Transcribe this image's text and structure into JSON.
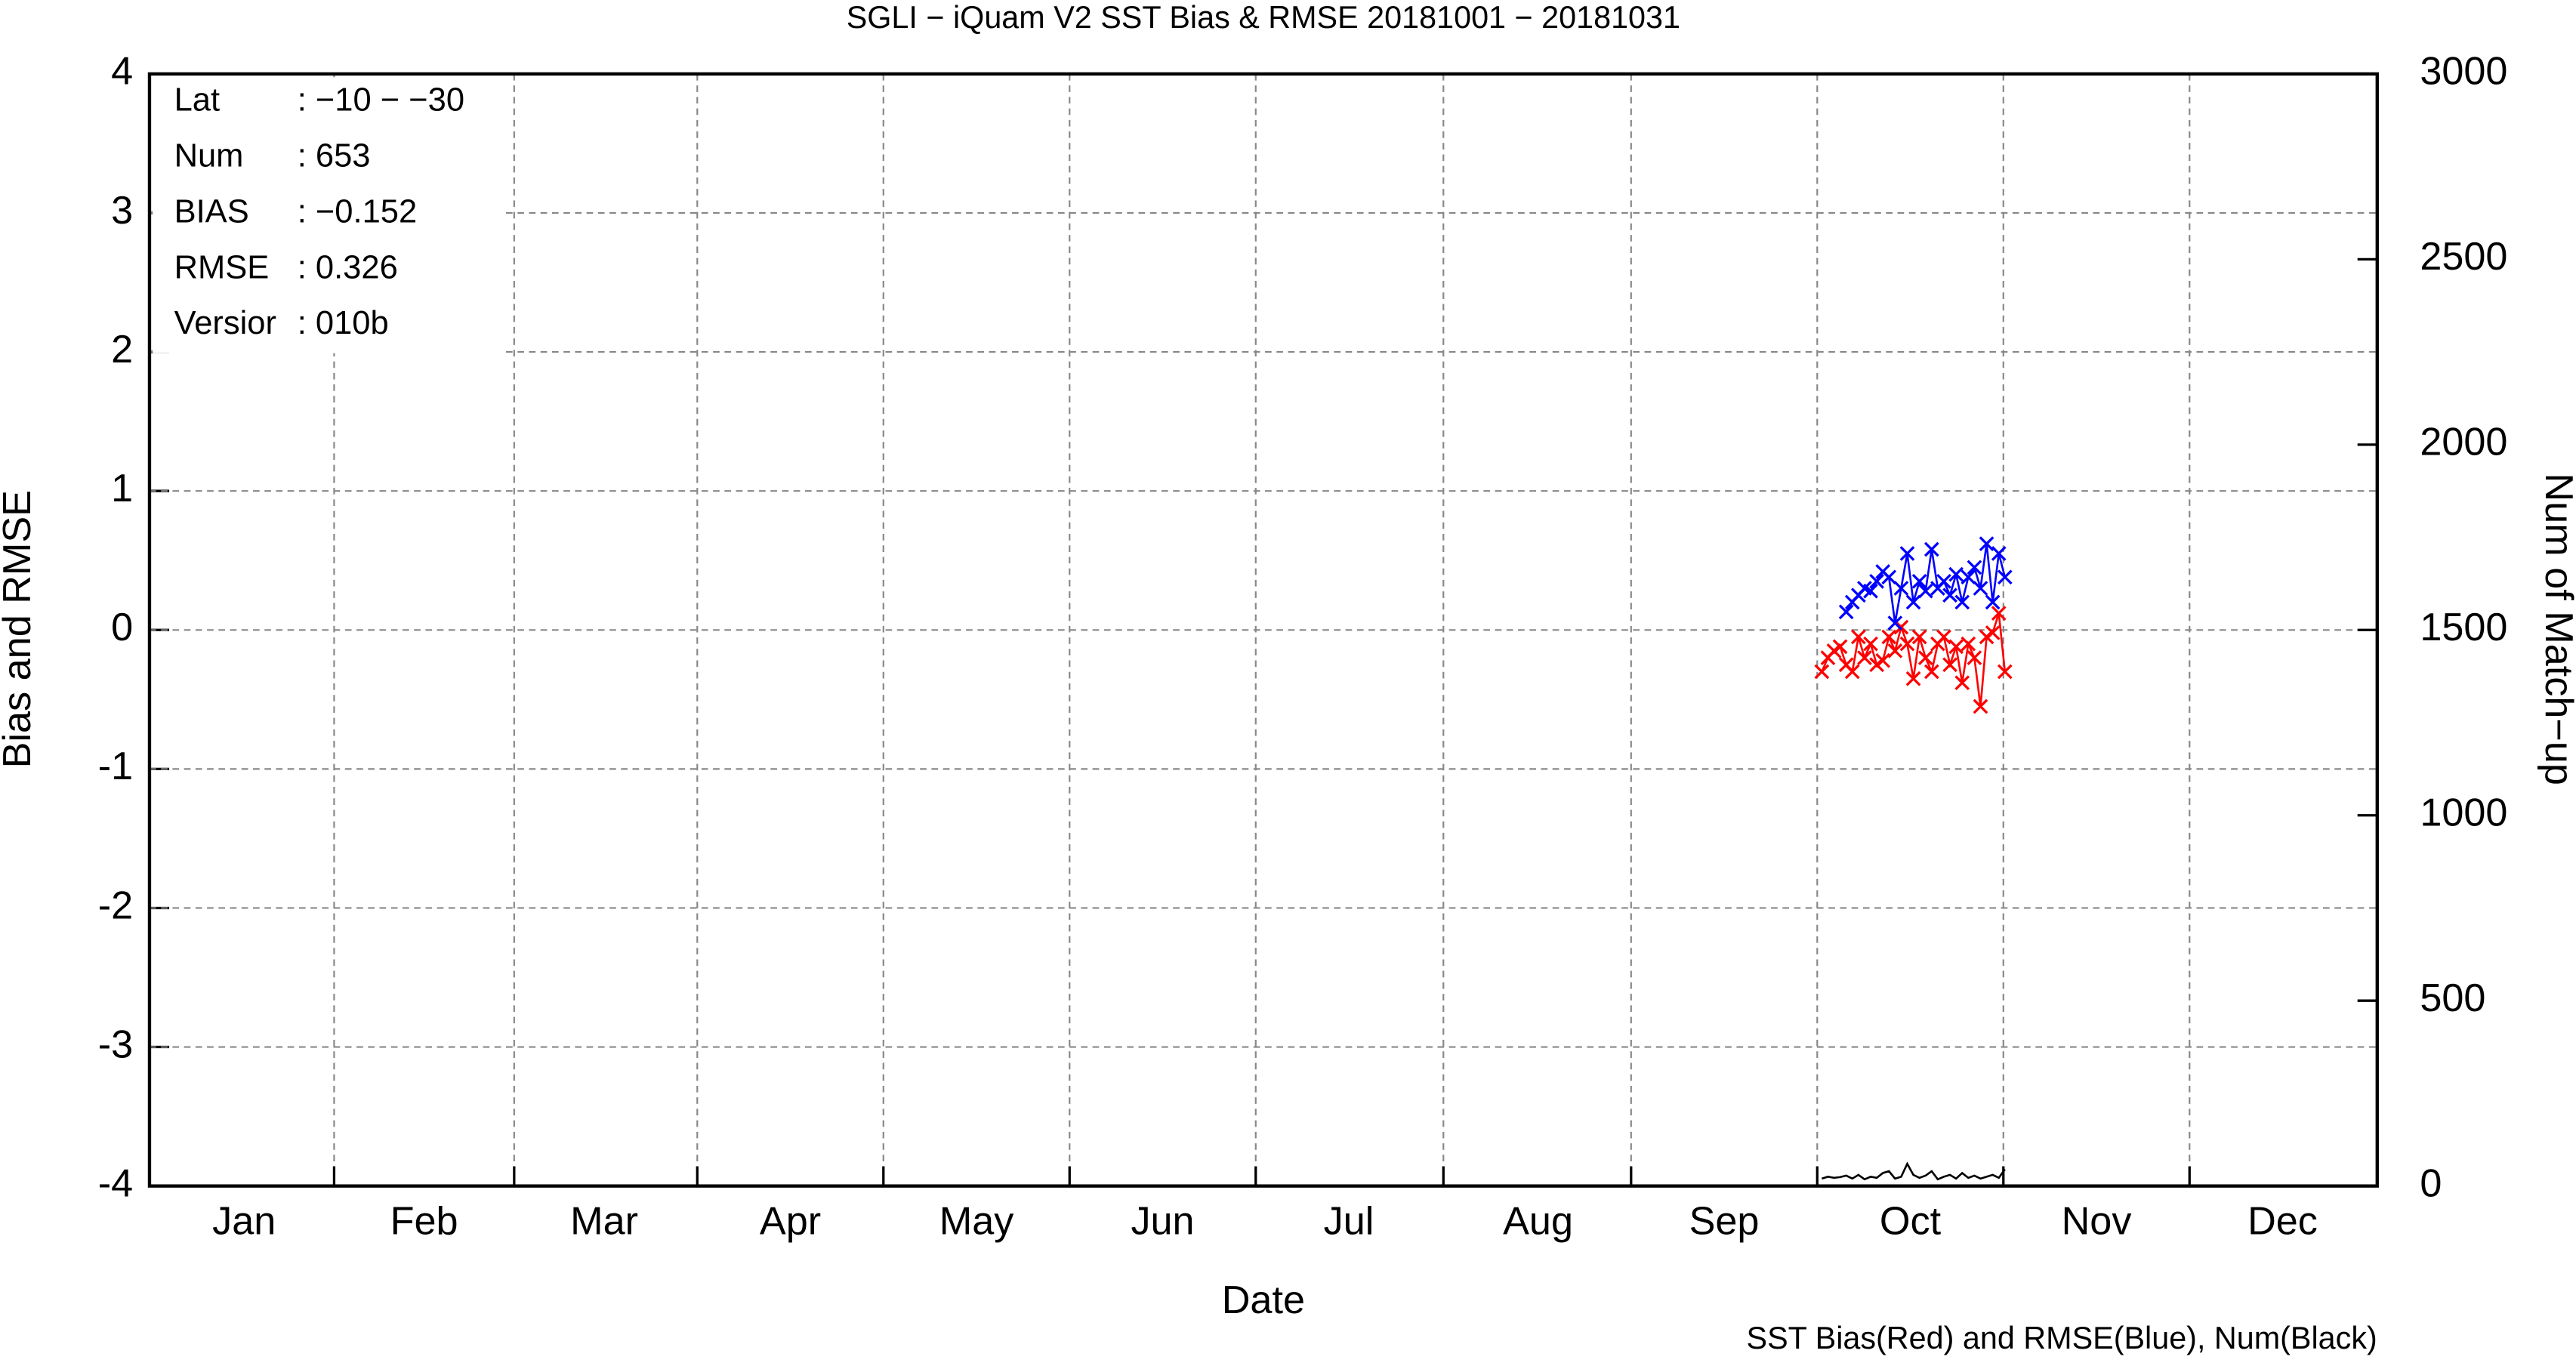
{
  "chart_data": {
    "type": "line",
    "title": "SGLI − iQuam V2 SST Bias & RMSE 20181001 − 20181031",
    "xlabel": "Date",
    "ylabel": "Bias and RMSE",
    "y2label": "Num of Match−up",
    "note": "SST Bias(Red) and RMSE(Blue), Num(Black)",
    "stats": [
      {
        "label": "Lat",
        "value": ": −10 − −30"
      },
      {
        "label": "Num",
        "value": ": 653"
      },
      {
        "label": "BIAS",
        "value": ": −0.152"
      },
      {
        "label": "RMSE",
        "value": ": 0.326"
      },
      {
        "label": "Versior",
        "value": ": 010b"
      }
    ],
    "x": [
      274,
      275,
      276,
      277,
      278,
      279,
      280,
      281,
      282,
      283,
      284,
      285,
      286,
      287,
      288,
      289,
      290,
      291,
      292,
      293,
      294,
      295,
      296,
      297,
      298,
      299,
      300,
      301,
      302,
      303,
      304
    ],
    "xlim": [
      0,
      365
    ],
    "xticks": [
      {
        "value": 15.5,
        "label": "Jan"
      },
      {
        "value": 45,
        "label": "Feb"
      },
      {
        "value": 74.5,
        "label": "Mar"
      },
      {
        "value": 105,
        "label": "Apr"
      },
      {
        "value": 135.5,
        "label": "May"
      },
      {
        "value": 166,
        "label": "Jun"
      },
      {
        "value": 196.5,
        "label": "Jul"
      },
      {
        "value": 227.5,
        "label": "Aug"
      },
      {
        "value": 258,
        "label": "Sep"
      },
      {
        "value": 288.5,
        "label": "Oct"
      },
      {
        "value": 319,
        "label": "Nov"
      },
      {
        "value": 349.5,
        "label": "Dec"
      }
    ],
    "ylim": [
      -4,
      4
    ],
    "yticks": [
      -4,
      -3,
      -2,
      -1,
      0,
      1,
      2,
      3,
      4
    ],
    "y2lim": [
      0,
      3000
    ],
    "y2ticks": [
      0,
      500,
      1000,
      1500,
      2000,
      2500,
      3000
    ],
    "grid": true,
    "series": [
      {
        "color": "#ff0000",
        "marker": "x",
        "values": [
          -0.3,
          -0.2,
          -0.15,
          -0.12,
          -0.25,
          -0.3,
          -0.05,
          -0.2,
          -0.1,
          -0.25,
          -0.22,
          -0.05,
          -0.15,
          0.02,
          -0.1,
          -0.35,
          -0.05,
          -0.2,
          -0.3,
          -0.1,
          -0.05,
          -0.25,
          -0.12,
          -0.38,
          -0.1,
          -0.2,
          -0.55,
          -0.05,
          -0.02,
          0.12,
          -0.3
        ]
      },
      {
        "color": "#0000ff",
        "marker": "x",
        "values": [
          null,
          null,
          null,
          null,
          0.13,
          0.2,
          0.25,
          0.3,
          0.28,
          0.35,
          0.42,
          0.38,
          0.05,
          0.3,
          0.55,
          0.2,
          0.35,
          0.28,
          0.58,
          0.3,
          0.35,
          0.25,
          0.4,
          0.2,
          0.38,
          0.45,
          0.3,
          0.62,
          0.2,
          0.55,
          0.38
        ]
      },
      {
        "color": "#000000",
        "axis": "y2",
        "values": [
          20,
          25,
          22,
          24,
          28,
          20,
          30,
          18,
          25,
          22,
          35,
          40,
          20,
          25,
          60,
          30,
          22,
          28,
          40,
          18,
          25,
          30,
          20,
          35,
          22,
          28,
          20,
          25,
          30,
          22,
          45
        ]
      }
    ]
  }
}
